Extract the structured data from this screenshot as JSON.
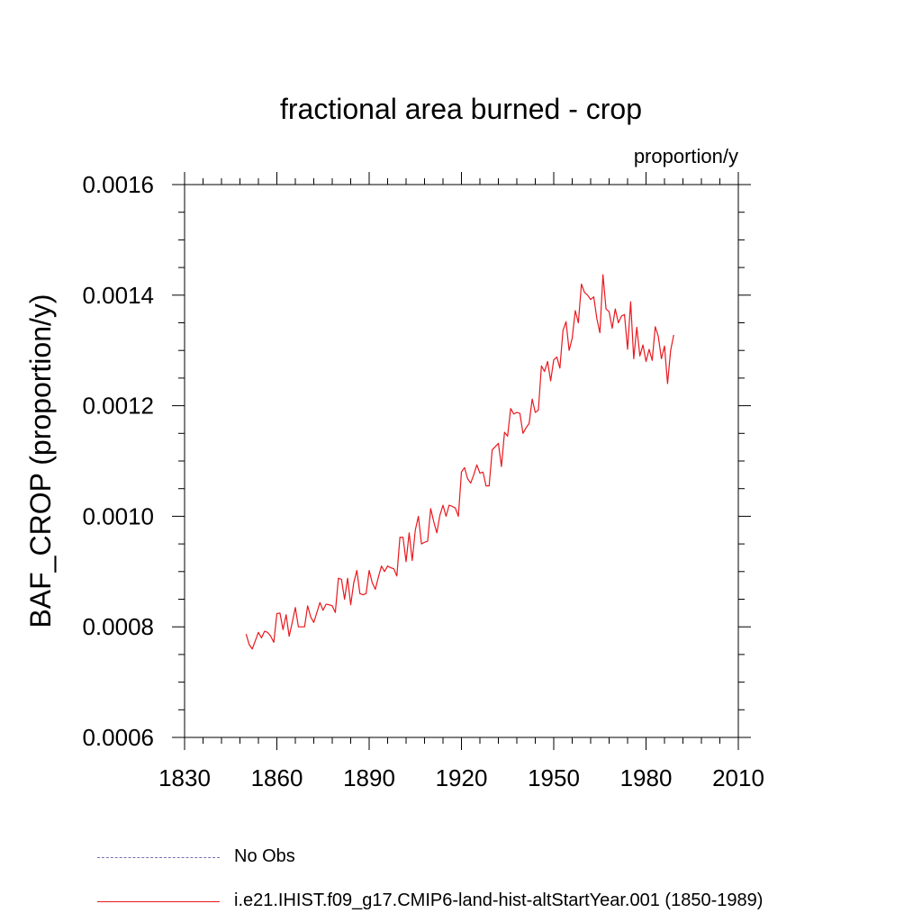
{
  "chart_data": {
    "type": "line",
    "title": "fractional area burned - crop",
    "units_label": "proportion/y",
    "ylabel": "BAF_CROP  (proportion/y)",
    "xlabel": "",
    "xlim": [
      1830,
      2010
    ],
    "ylim": [
      0.0006,
      0.0016
    ],
    "x_ticks": [
      1830,
      1860,
      1890,
      1920,
      1950,
      1980,
      2010
    ],
    "x_tick_labels": [
      "1830",
      "1860",
      "1890",
      "1920",
      "1950",
      "1980",
      "2010"
    ],
    "y_ticks": [
      0.0006,
      0.0008,
      0.001,
      0.0012,
      0.0014,
      0.0016
    ],
    "y_tick_labels": [
      "0.0006",
      "0.0008",
      "0.0010",
      "0.0012",
      "0.0014",
      "0.0016"
    ],
    "grid": false,
    "legend_position": "bottom-left",
    "series": [
      {
        "name": "i.e21.IHIST.f09_g17.CMIP6-land-hist-altStartYear.001 (1850-1989)",
        "color": "#e8191e",
        "style": "solid",
        "x_start": 1850,
        "x_step": 1,
        "values": [
          0.000787,
          0.000768,
          0.00076,
          0.000775,
          0.00079,
          0.00078,
          0.000792,
          0.00079,
          0.000783,
          0.000772,
          0.000824,
          0.000825,
          0.000795,
          0.000822,
          0.000783,
          0.000808,
          0.000835,
          0.0008,
          0.0008,
          0.0008,
          0.000838,
          0.000818,
          0.000808,
          0.000826,
          0.000844,
          0.00083,
          0.000841,
          0.00084,
          0.000838,
          0.000826,
          0.000888,
          0.000886,
          0.00085,
          0.000888,
          0.00084,
          0.00088,
          0.000902,
          0.00086,
          0.000858,
          0.00086,
          0.000902,
          0.00088,
          0.000868,
          0.00089,
          0.00091,
          0.0009,
          0.00091,
          0.000907,
          0.000905,
          0.000892,
          0.000962,
          0.000962,
          0.000918,
          0.00097,
          0.00092,
          0.000975,
          0.001,
          0.00095,
          0.000953,
          0.000955,
          0.001014,
          0.00099,
          0.00097,
          0.001002,
          0.00102,
          0.001,
          0.00102,
          0.001018,
          0.001015,
          0.001,
          0.00108,
          0.001088,
          0.001068,
          0.00106,
          0.001075,
          0.001093,
          0.001078,
          0.00108,
          0.001055,
          0.001055,
          0.00112,
          0.001126,
          0.001132,
          0.00109,
          0.001152,
          0.001145,
          0.001195,
          0.001185,
          0.001188,
          0.001186,
          0.00115,
          0.00116,
          0.001168,
          0.001212,
          0.001188,
          0.001192,
          0.001272,
          0.001262,
          0.00128,
          0.001245,
          0.001283,
          0.001288,
          0.001268,
          0.001336,
          0.001352,
          0.0013,
          0.001322,
          0.001372,
          0.00135,
          0.00142,
          0.001405,
          0.0014,
          0.001392,
          0.001397,
          0.001358,
          0.001332,
          0.001437,
          0.001375,
          0.00137,
          0.00134,
          0.001375,
          0.00135,
          0.001362,
          0.001365,
          0.001302,
          0.001388,
          0.001285,
          0.001342,
          0.00129,
          0.00131,
          0.00128,
          0.001302,
          0.001282,
          0.001343,
          0.001325,
          0.001285,
          0.001308,
          0.00124,
          0.0013,
          0.001328
        ]
      }
    ]
  },
  "legend": {
    "items": [
      {
        "label": "No Obs",
        "color": "#7a6fb0",
        "style": "dashed"
      },
      {
        "label": "i.e21.IHIST.f09_g17.CMIP6-land-hist-altStartYear.001 (1850-1989)",
        "color": "#e8191e",
        "style": "solid"
      }
    ]
  }
}
